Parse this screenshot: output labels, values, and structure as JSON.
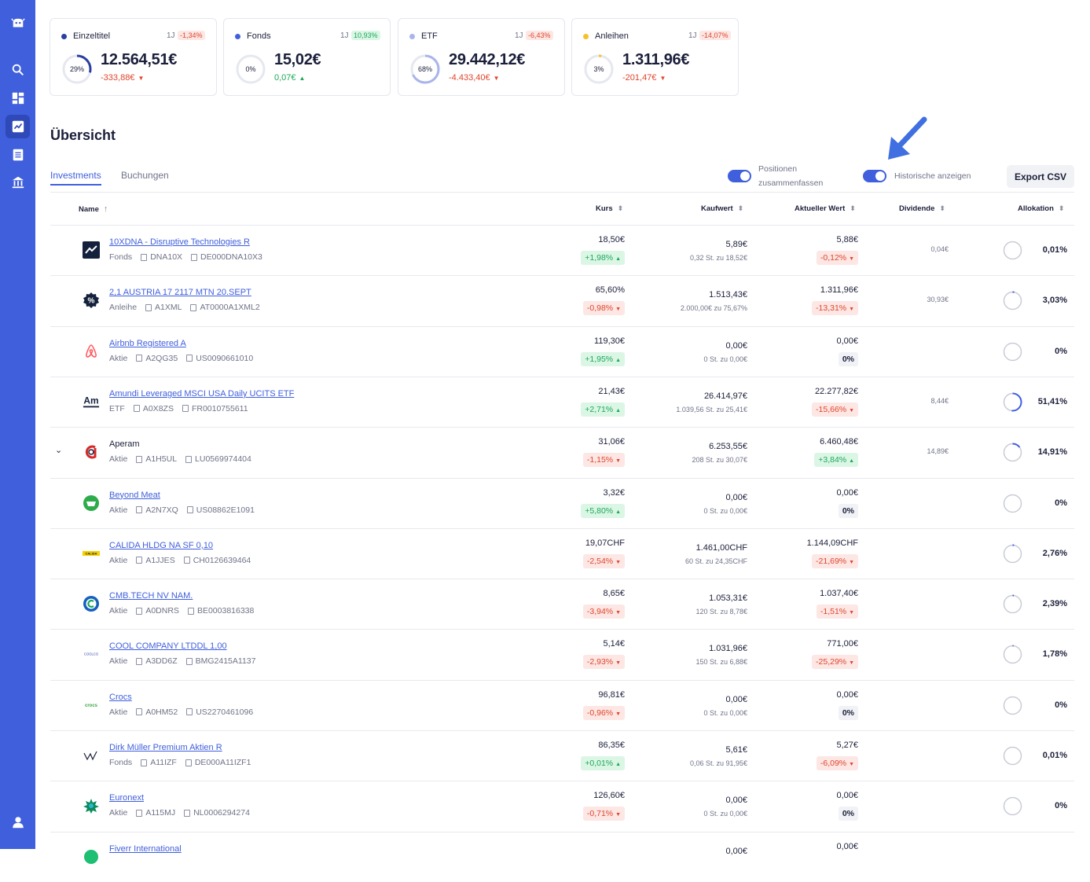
{
  "sidebar": {
    "items": [
      {
        "icon": "logo-icon"
      },
      {
        "icon": "search-icon"
      },
      {
        "icon": "dashboard-icon"
      },
      {
        "icon": "chart-icon",
        "active": true
      },
      {
        "icon": "list-icon"
      },
      {
        "icon": "bank-icon"
      },
      {
        "icon": "user-icon"
      }
    ]
  },
  "cards": [
    {
      "name": "Einzeltitel",
      "dot": "#2a3fa0",
      "period": "1J",
      "change": "-1,34%",
      "change_dir": "neg",
      "pct_label": "29%",
      "pct": 29,
      "value": "12.564,51€",
      "sub": "-333,88€",
      "sub_dir": "neg"
    },
    {
      "name": "Fonds",
      "dot": "#3f5fdc",
      "period": "1J",
      "change": "10,93%",
      "change_dir": "pos",
      "pct_label": "0%",
      "pct": 0,
      "value": "15,02€",
      "sub": "0,07€",
      "sub_dir": "pos"
    },
    {
      "name": "ETF",
      "dot": "#a9b4ec",
      "period": "1J",
      "change": "-6,43%",
      "change_dir": "neg",
      "pct_label": "68%",
      "pct": 68,
      "value": "29.442,12€",
      "sub": "-4.433,40€",
      "sub_dir": "neg"
    },
    {
      "name": "Anleihen",
      "dot": "#f6c12a",
      "period": "1J",
      "change": "-14,07%",
      "change_dir": "neg",
      "pct_label": "3%",
      "pct": 3,
      "value": "1.311,96€",
      "sub": "-201,47€",
      "sub_dir": "neg"
    }
  ],
  "page_title": "Übersicht",
  "tabs": [
    {
      "label": "Investments",
      "active": true
    },
    {
      "label": "Buchungen",
      "active": false
    }
  ],
  "toggles": {
    "merge_label_1": "Positionen",
    "merge_label_2": "zusammenfassen",
    "history_label": "Historische anzeigen"
  },
  "export_label": "Export CSV",
  "columns": {
    "name": "Name",
    "kurs": "Kurs",
    "kaufwert": "Kaufwert",
    "aktueller_wert": "Aktueller Wert",
    "dividende": "Dividende",
    "allokation": "Allokation"
  },
  "rows": [
    {
      "name": "10XDNA - Disruptive Technologies R",
      "linked": true,
      "logo": "chart-logo-icon",
      "type": "Fonds",
      "wkn": "DNA10X",
      "isin": "DE000DNA10X3",
      "kurs": "18,50€",
      "kurs_chg": "+1,98%",
      "kurs_dir": "pos",
      "kauf": "5,89€",
      "kauf_sub": "0,32 St. zu 18,52€",
      "akt": "5,88€",
      "akt_chg": "-0,12%",
      "akt_dir": "neg",
      "div": "0,04€",
      "alloc": "0,01%",
      "alloc_pct": 0.01
    },
    {
      "name": "2,1 AUSTRIA 17 2117 MTN 20.SEPT",
      "linked": true,
      "logo": "percent-logo-icon",
      "type": "Anleihe",
      "wkn": "A1XML",
      "isin": "AT0000A1XML2",
      "kurs": "65,60%",
      "kurs_chg": "-0,98%",
      "kurs_dir": "neg",
      "kauf": "1.513,43€",
      "kauf_sub": "2.000,00€ zu 75,67%",
      "akt": "1.311,96€",
      "akt_chg": "-13,31%",
      "akt_dir": "neg",
      "div": "30,93€",
      "alloc": "3,03%",
      "alloc_pct": 3.03
    },
    {
      "name": "Airbnb Registered A",
      "linked": true,
      "logo": "airbnb-logo-icon",
      "type": "Aktie",
      "wkn": "A2QG35",
      "isin": "US0090661010",
      "kurs": "119,30€",
      "kurs_chg": "+1,95%",
      "kurs_dir": "pos",
      "kauf": "0,00€",
      "kauf_sub": "0 St. zu 0,00€",
      "akt": "0,00€",
      "akt_chg": "0%",
      "akt_dir": "zero",
      "div": "",
      "alloc": "0%",
      "alloc_pct": 0
    },
    {
      "name": "Amundi Leveraged MSCI USA Daily UCITS ETF",
      "linked": true,
      "logo": "amundi-logo-icon",
      "type": "ETF",
      "wkn": "A0X8ZS",
      "isin": "FR0010755611",
      "kurs": "21,43€",
      "kurs_chg": "+2,71%",
      "kurs_dir": "pos",
      "kauf": "26.414,97€",
      "kauf_sub": "1.039,56 St. zu 25,41€",
      "akt": "22.277,82€",
      "akt_chg": "-15,66%",
      "akt_dir": "neg",
      "div": "8,44€",
      "alloc": "51,41%",
      "alloc_pct": 51.41
    },
    {
      "name": "Aperam",
      "linked": false,
      "expand": true,
      "logo": "aperam-logo-icon",
      "type": "Aktie",
      "wkn": "A1H5UL",
      "isin": "LU0569974404",
      "kurs": "31,06€",
      "kurs_chg": "-1,15%",
      "kurs_dir": "neg",
      "kauf": "6.253,55€",
      "kauf_sub": "208 St. zu 30,07€",
      "akt": "6.460,48€",
      "akt_chg": "+3,84%",
      "akt_dir": "pos",
      "div": "14,89€",
      "alloc": "14,91%",
      "alloc_pct": 14.91
    },
    {
      "name": "Beyond Meat",
      "linked": true,
      "logo": "beyond-meat-logo-icon",
      "type": "Aktie",
      "wkn": "A2N7XQ",
      "isin": "US08862E1091",
      "kurs": "3,32€",
      "kurs_chg": "+5,80%",
      "kurs_dir": "pos",
      "kauf": "0,00€",
      "kauf_sub": "0 St. zu 0,00€",
      "akt": "0,00€",
      "akt_chg": "0%",
      "akt_dir": "zero",
      "div": "",
      "alloc": "0%",
      "alloc_pct": 0
    },
    {
      "name": "CALIDA HLDG NA SF 0,10",
      "linked": true,
      "logo": "calida-logo-icon",
      "type": "Aktie",
      "wkn": "A1JJES",
      "isin": "CH0126639464",
      "kurs": "19,07CHF",
      "kurs_chg": "-2,54%",
      "kurs_dir": "neg",
      "kauf": "1.461,00CHF",
      "kauf_sub": "60 St. zu 24,35CHF",
      "akt": "1.144,09CHF",
      "akt_chg": "-21,69%",
      "akt_dir": "neg",
      "div": "",
      "alloc": "2,76%",
      "alloc_pct": 2.76
    },
    {
      "name": "CMB.TECH NV NAM.",
      "linked": true,
      "logo": "cmb-logo-icon",
      "type": "Aktie",
      "wkn": "A0DNRS",
      "isin": "BE0003816338",
      "kurs": "8,65€",
      "kurs_chg": "-3,94%",
      "kurs_dir": "neg",
      "kauf": "1.053,31€",
      "kauf_sub": "120 St. zu 8,78€",
      "akt": "1.037,40€",
      "akt_chg": "-1,51%",
      "akt_dir": "neg",
      "div": "",
      "alloc": "2,39%",
      "alloc_pct": 2.39
    },
    {
      "name": "COOL COMPANY LTDDL 1,00",
      "linked": true,
      "logo": "coolco-logo-icon",
      "type": "Aktie",
      "wkn": "A3DD6Z",
      "isin": "BMG2415A1137",
      "kurs": "5,14€",
      "kurs_chg": "-2,93%",
      "kurs_dir": "neg",
      "kauf": "1.031,96€",
      "kauf_sub": "150 St. zu 6,88€",
      "akt": "771,00€",
      "akt_chg": "-25,29%",
      "akt_dir": "neg",
      "div": "",
      "alloc": "1,78%",
      "alloc_pct": 1.78
    },
    {
      "name": "Crocs",
      "linked": true,
      "logo": "crocs-logo-icon",
      "type": "Aktie",
      "wkn": "A0HM52",
      "isin": "US2270461096",
      "kurs": "96,81€",
      "kurs_chg": "-0,96%",
      "kurs_dir": "neg",
      "kauf": "0,00€",
      "kauf_sub": "0 St. zu 0,00€",
      "akt": "0,00€",
      "akt_chg": "0%",
      "akt_dir": "zero",
      "div": "",
      "alloc": "0%",
      "alloc_pct": 0
    },
    {
      "name": "Dirk Müller Premium Aktien R",
      "linked": true,
      "logo": "dirk-mueller-logo-icon",
      "type": "Fonds",
      "wkn": "A11IZF",
      "isin": "DE000A11IZF1",
      "kurs": "86,35€",
      "kurs_chg": "+0,01%",
      "kurs_dir": "pos",
      "kauf": "5,61€",
      "kauf_sub": "0,06 St. zu 91,95€",
      "akt": "5,27€",
      "akt_chg": "-6,09%",
      "akt_dir": "neg",
      "div": "",
      "alloc": "0,01%",
      "alloc_pct": 0.01
    },
    {
      "name": "Euronext",
      "linked": true,
      "logo": "euronext-logo-icon",
      "type": "Aktie",
      "wkn": "A115MJ",
      "isin": "NL0006294274",
      "kurs": "126,60€",
      "kurs_chg": "-0,71%",
      "kurs_dir": "neg",
      "kauf": "0,00€",
      "kauf_sub": "0 St. zu 0,00€",
      "akt": "0,00€",
      "akt_chg": "0%",
      "akt_dir": "zero",
      "div": "",
      "alloc": "0%",
      "alloc_pct": 0
    },
    {
      "name": "Fiverr International",
      "linked": true,
      "logo": "fiverr-logo-icon",
      "type": "",
      "wkn": "",
      "isin": "",
      "kurs": "",
      "kurs_chg": "",
      "kurs_dir": "",
      "kauf": "0,00€",
      "kauf_sub": "",
      "akt": "0,00€",
      "akt_chg": "",
      "akt_dir": "",
      "div": "",
      "alloc": "",
      "alloc_pct": 0
    }
  ]
}
